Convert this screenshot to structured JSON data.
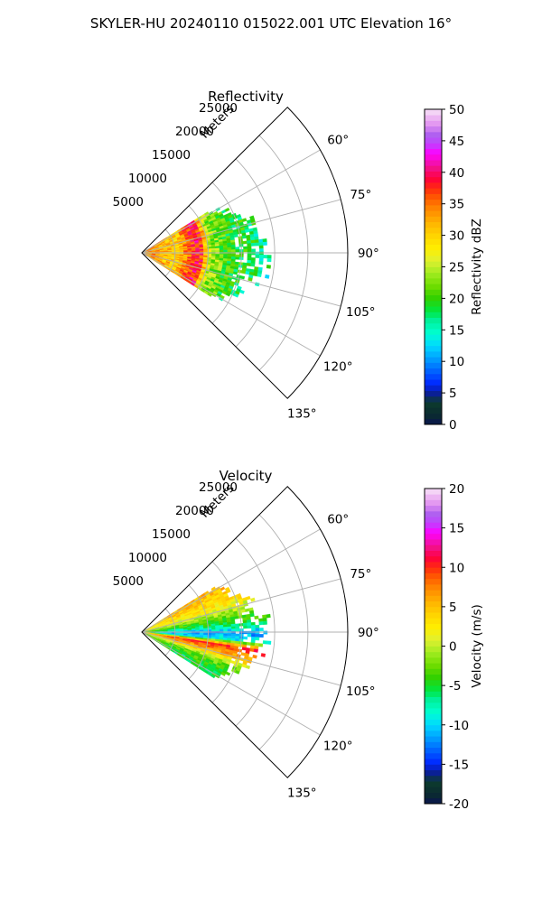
{
  "figure": {
    "suptitle": "SKYLER-HU  20240110  015022.001 UTC Elevation 16°"
  },
  "chart_data": [
    {
      "type": "heatmap",
      "subtype": "polar-sector",
      "title": "Reflectivity",
      "range_label": "Meters",
      "range_ticks": [
        5000,
        10000,
        15000,
        20000,
        25000
      ],
      "range_lim": [
        0,
        31000
      ],
      "angle_ticks": [
        60,
        75,
        90,
        105,
        120,
        135
      ],
      "angle_lim": [
        45,
        135
      ],
      "grid": true,
      "colorbar": {
        "label": "Reflectivity dBZ",
        "min": 0,
        "max": 50,
        "ticks": [
          0,
          5,
          10,
          15,
          20,
          25,
          30,
          35,
          40,
          45,
          50
        ]
      },
      "field": {
        "data_range": [
          0,
          19000
        ],
        "profile": [
          {
            "r": 2000,
            "value": 33
          },
          {
            "r": 5000,
            "value": 30
          },
          {
            "r": 7000,
            "value": 36
          },
          {
            "r": 8500,
            "value": 40
          },
          {
            "r": 10000,
            "value": 24
          },
          {
            "r": 13000,
            "value": 20
          },
          {
            "r": 16000,
            "value": 18
          },
          {
            "r": 19000,
            "value": 16
          }
        ]
      }
    },
    {
      "type": "heatmap",
      "subtype": "polar-sector",
      "title": "Velocity",
      "range_label": "Meters",
      "range_ticks": [
        5000,
        10000,
        15000,
        20000,
        25000
      ],
      "range_lim": [
        0,
        31000
      ],
      "angle_ticks": [
        60,
        75,
        90,
        105,
        120,
        135
      ],
      "angle_lim": [
        45,
        135
      ],
      "grid": true,
      "colorbar": {
        "label": "Velocity (m/s)",
        "min": -20,
        "max": 20,
        "ticks": [
          -20,
          -15,
          -10,
          -5,
          0,
          5,
          10,
          15,
          20
        ]
      },
      "field": {
        "data_range": [
          0,
          19000
        ],
        "azimuth_profile": [
          {
            "az": 62,
            "value": 5
          },
          {
            "az": 72,
            "value": 2
          },
          {
            "az": 80,
            "value": -3
          },
          {
            "az": 86,
            "value": -7
          },
          {
            "az": 90,
            "value": -12
          },
          {
            "az": 94,
            "value": -9
          },
          {
            "az": 98,
            "value": 10
          },
          {
            "az": 104,
            "value": 6
          },
          {
            "az": 110,
            "value": -2
          },
          {
            "az": 118,
            "value": -5
          }
        ]
      }
    }
  ]
}
